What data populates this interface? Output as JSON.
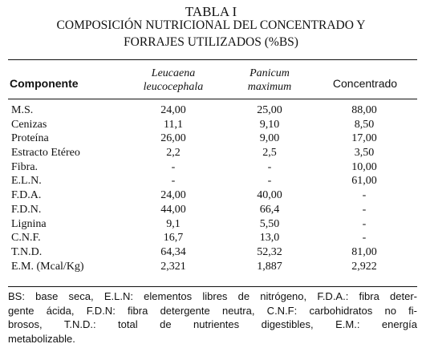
{
  "caption": {
    "label": "TABLA I",
    "title_line1": "COMPOSICIÓN NUTRICIONAL DEL CONCENTRADO Y",
    "title_line2": "FORRAJES UTILIZADOS (%BS)"
  },
  "table": {
    "headers": {
      "componente": "Componente",
      "leucaena_line1": "Leucaena",
      "leucaena_line2": "leucocephala",
      "panicum_line1": "Panicum",
      "panicum_line2": "maximum",
      "concentrado": "Concentrado"
    },
    "rows": [
      {
        "name": "M.S.",
        "leucaena": "24,00",
        "panicum": "25,00",
        "concentrado": "88,00"
      },
      {
        "name": "Cenizas",
        "leucaena": "11,1",
        "panicum": "9,10",
        "concentrado": "8,50"
      },
      {
        "name": "Proteína",
        "leucaena": "26,00",
        "panicum": "9,00",
        "concentrado": "17,00"
      },
      {
        "name": "Estracto Etéreo",
        "leucaena": "2,2",
        "panicum": "2,5",
        "concentrado": "3,50"
      },
      {
        "name": "Fibra.",
        "leucaena": "-",
        "panicum": "-",
        "concentrado": "10,00"
      },
      {
        "name": "E.L.N.",
        "leucaena": "-",
        "panicum": "-",
        "concentrado": "61,00"
      },
      {
        "name": "F.D.A.",
        "leucaena": "24,00",
        "panicum": "40,00",
        "concentrado": "-"
      },
      {
        "name": "F.D.N.",
        "leucaena": "44,00",
        "panicum": "66,4",
        "concentrado": "-"
      },
      {
        "name": "Lignina",
        "leucaena": "9,1",
        "panicum": "5,50",
        "concentrado": "-"
      },
      {
        "name": "C.N.F.",
        "leucaena": "16,7",
        "panicum": "13,0",
        "concentrado": "-"
      },
      {
        "name": "T.N.D.",
        "leucaena": "64,34",
        "panicum": "52,32",
        "concentrado": "81,00"
      },
      {
        "name": "E.M. (Mcal/Kg)",
        "leucaena": "2,321",
        "panicum": "1,887",
        "concentrado": "2,922"
      }
    ]
  },
  "footnote": {
    "line1": "BS: base seca, E.L.N: elementos libres de nitrógeno, F.D.A.: fibra deter-",
    "line2": "gente ácida, F.D.N: fibra detergente neutra, C.N.F: carbohidratos no fi-",
    "line3": "brosos, T.N.D.: total de nutrientes digestibles, E.M.: energía",
    "line4": "metabolizable."
  }
}
